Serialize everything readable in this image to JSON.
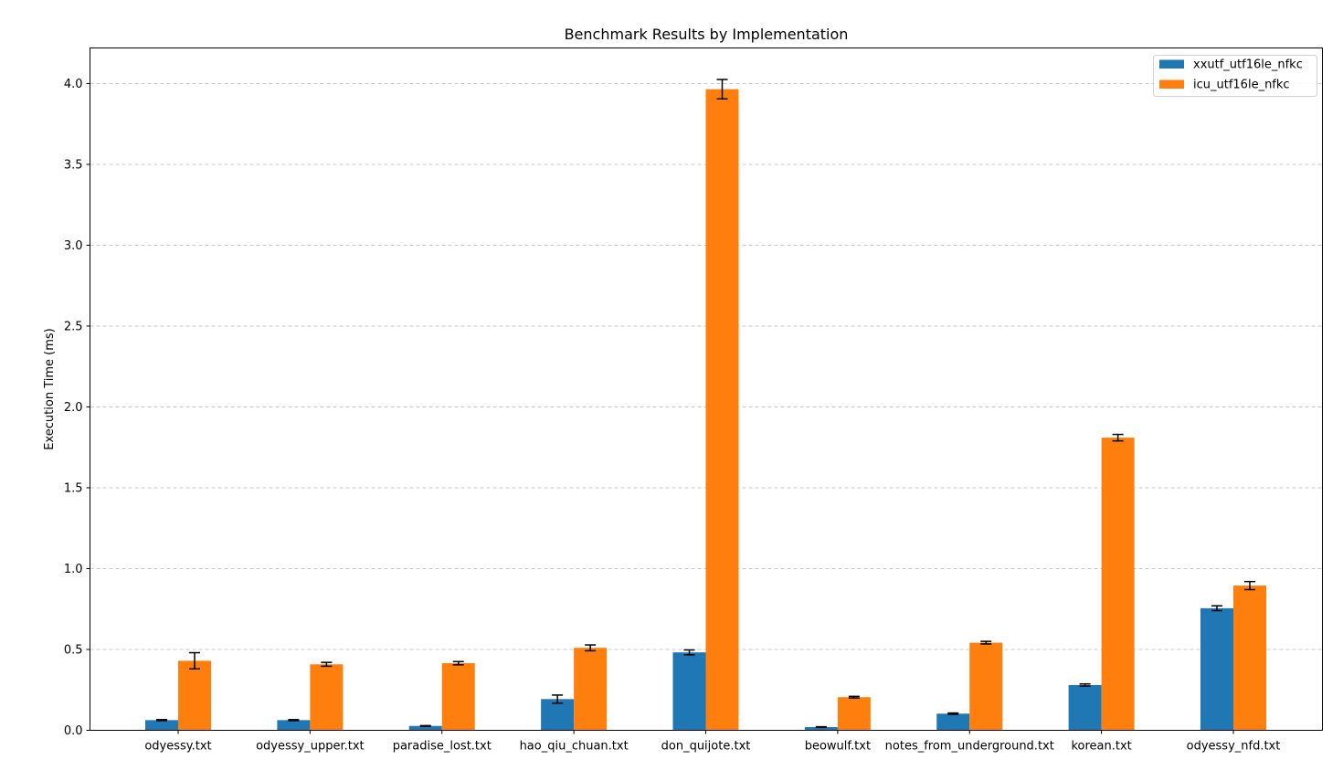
{
  "chart_data": {
    "type": "bar",
    "title": "Benchmark Results by Implementation",
    "xlabel": "",
    "ylabel": "Execution Time (ms)",
    "ylim": [
      0,
      4.22
    ],
    "yticks": [
      0.0,
      0.5,
      1.0,
      1.5,
      2.0,
      2.5,
      3.0,
      3.5,
      4.0
    ],
    "ytick_labels": [
      "0.0",
      "0.5",
      "1.0",
      "1.5",
      "2.0",
      "2.5",
      "3.0",
      "3.5",
      "4.0"
    ],
    "grid": "y-dashed",
    "legend_position": "top-right",
    "categories": [
      "odyessy.txt",
      "odyessy_upper.txt",
      "paradise_lost.txt",
      "hao_qiu_chuan.txt",
      "don_quijote.txt",
      "beowulf.txt",
      "notes_from_underground.txt",
      "korean.txt",
      "odyessy_nfd.txt"
    ],
    "series": [
      {
        "name": "xxutf_utf16le_nfkc",
        "color": "#1f77b4",
        "values": [
          0.063,
          0.063,
          0.027,
          0.193,
          0.482,
          0.02,
          0.103,
          0.28,
          0.755
        ],
        "errors": [
          0.003,
          0.003,
          0.002,
          0.025,
          0.015,
          0.002,
          0.004,
          0.007,
          0.015
        ]
      },
      {
        "name": "icu_utf16le_nfkc",
        "color": "#ff7f0e",
        "values": [
          0.43,
          0.408,
          0.415,
          0.51,
          3.965,
          0.205,
          0.542,
          1.81,
          0.895
        ],
        "errors": [
          0.05,
          0.012,
          0.01,
          0.018,
          0.06,
          0.005,
          0.008,
          0.02,
          0.025
        ]
      }
    ]
  }
}
